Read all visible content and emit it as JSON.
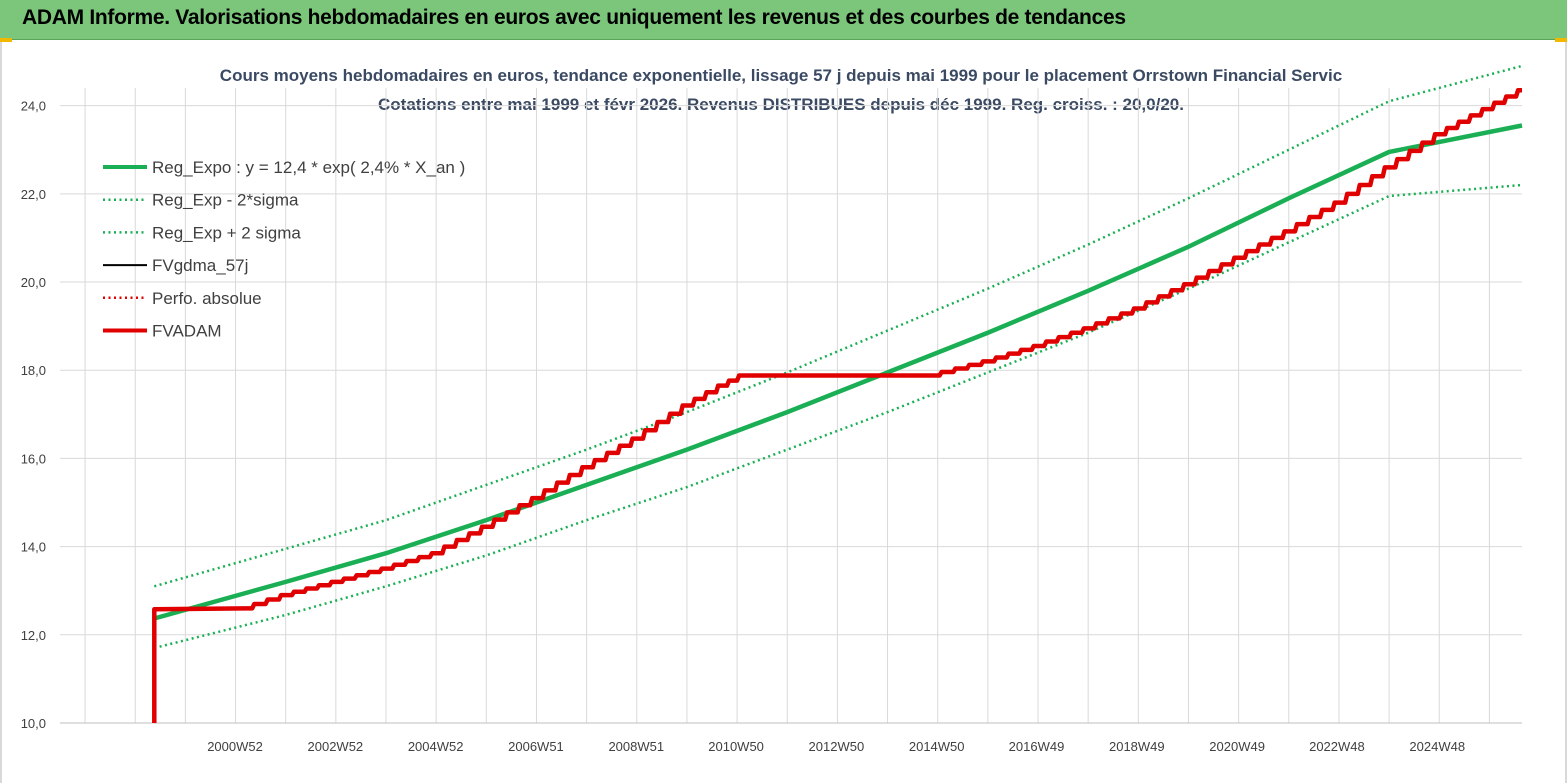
{
  "header": {
    "title": "ADAM Informe. Valorisations hebdomadaires en euros avec uniquement les revenus et des courbes de tendances"
  },
  "colors": {
    "banner": "#7bc67b",
    "trend_green": "#1aaf54",
    "fvadam_red": "#e00000",
    "perfo_red": "#e00000",
    "fvgdma_black": "#000000",
    "grid": "#d9d9d9"
  },
  "chart_data": {
    "type": "line",
    "title": "Cours moyens hebdomadaires en euros, tendance exponentielle, lissage 57 j depuis mai 1999 pour le placement Orrstown Financial Servic",
    "subtitle": "Cotations entre mai 1999 et févr 2026. Revenus DISTRIBUES depuis déc 1999. Reg. croiss. : 20,0/20.",
    "xlabel": "",
    "ylabel": "",
    "ylim": [
      10,
      24.4
    ],
    "yticks": [
      "10,0",
      "12,0",
      "14,0",
      "16,0",
      "18,0",
      "20,0",
      "22,0",
      "24,0"
    ],
    "ytick_values": [
      10,
      12,
      14,
      16,
      18,
      20,
      22,
      24
    ],
    "xlim": [
      1997.5,
      2026.65
    ],
    "xtick_labels": [
      "2000W52",
      "2002W52",
      "2004W52",
      "2006W51",
      "2008W51",
      "2010W50",
      "2012W50",
      "2014W50",
      "2016W49",
      "2018W49",
      "2020W49",
      "2022W48",
      "2024W48"
    ],
    "xtick_years": [
      2000.99,
      2002.99,
      2004.99,
      2006.99,
      2008.99,
      2010.98,
      2012.98,
      2014.98,
      2016.97,
      2018.97,
      2020.97,
      2022.96,
      2024.96
    ],
    "grid": true,
    "legend_position": "top-left",
    "series": [
      {
        "name": "Reg_Expo : y = 12,4 * exp( 2,4% *  X_an )",
        "style": "solid-thick",
        "color": "#1aaf54",
        "x": [
          1999.38,
          2002,
          2004,
          2006,
          2008,
          2010,
          2012,
          2014,
          2016,
          2018,
          2020,
          2022,
          2024,
          2026.65
        ],
        "values": [
          12.37,
          13.2,
          13.85,
          14.6,
          15.4,
          16.2,
          17.05,
          17.95,
          18.85,
          19.8,
          20.8,
          21.9,
          22.95,
          23.55
        ]
      },
      {
        "name": "Reg_Exp - 2*sigma",
        "style": "dotted",
        "color": "#1aaf54",
        "x": [
          1999.38,
          2002,
          2004,
          2006,
          2008,
          2010,
          2012,
          2014,
          2016,
          2018,
          2020,
          2022,
          2024,
          2026.65
        ],
        "values": [
          11.7,
          12.45,
          13.1,
          13.8,
          14.6,
          15.35,
          16.2,
          17.05,
          17.95,
          18.85,
          19.85,
          20.9,
          21.95,
          22.2
        ]
      },
      {
        "name": "Reg_Exp + 2 sigma",
        "style": "dotted",
        "color": "#1aaf54",
        "x": [
          1999.38,
          2002,
          2004,
          2006,
          2008,
          2010,
          2012,
          2014,
          2016,
          2018,
          2020,
          2022,
          2024,
          2026.65
        ],
        "values": [
          13.1,
          13.95,
          14.6,
          15.4,
          16.2,
          17.05,
          17.95,
          18.9,
          19.85,
          20.85,
          21.9,
          23.0,
          24.1,
          24.9
        ]
      },
      {
        "name": "FVgdma_57j",
        "style": "solid",
        "color": "#000000",
        "x": [],
        "values": []
      },
      {
        "name": "Perfo. absolue",
        "style": "dotted",
        "color": "#e00000",
        "x": [],
        "values": []
      },
      {
        "name": "FVADAM",
        "style": "solid-thick",
        "color": "#e00000",
        "x": [
          1999.38,
          1999.38,
          2001.2,
          2002,
          2003,
          2004,
          2005,
          2006,
          2007,
          2008,
          2009,
          2010,
          2010.7,
          2011.1,
          2013,
          2014.9,
          2016,
          2017,
          2018,
          2019,
          2020,
          2021,
          2022,
          2023,
          2024,
          2025,
          2026.65
        ],
        "values": [
          10.0,
          12.58,
          12.6,
          12.9,
          13.2,
          13.5,
          13.85,
          14.45,
          15.1,
          15.8,
          16.45,
          17.2,
          17.65,
          17.88,
          17.88,
          17.88,
          18.2,
          18.55,
          18.95,
          19.4,
          19.95,
          20.55,
          21.15,
          21.8,
          22.6,
          23.35,
          24.35
        ]
      }
    ]
  }
}
